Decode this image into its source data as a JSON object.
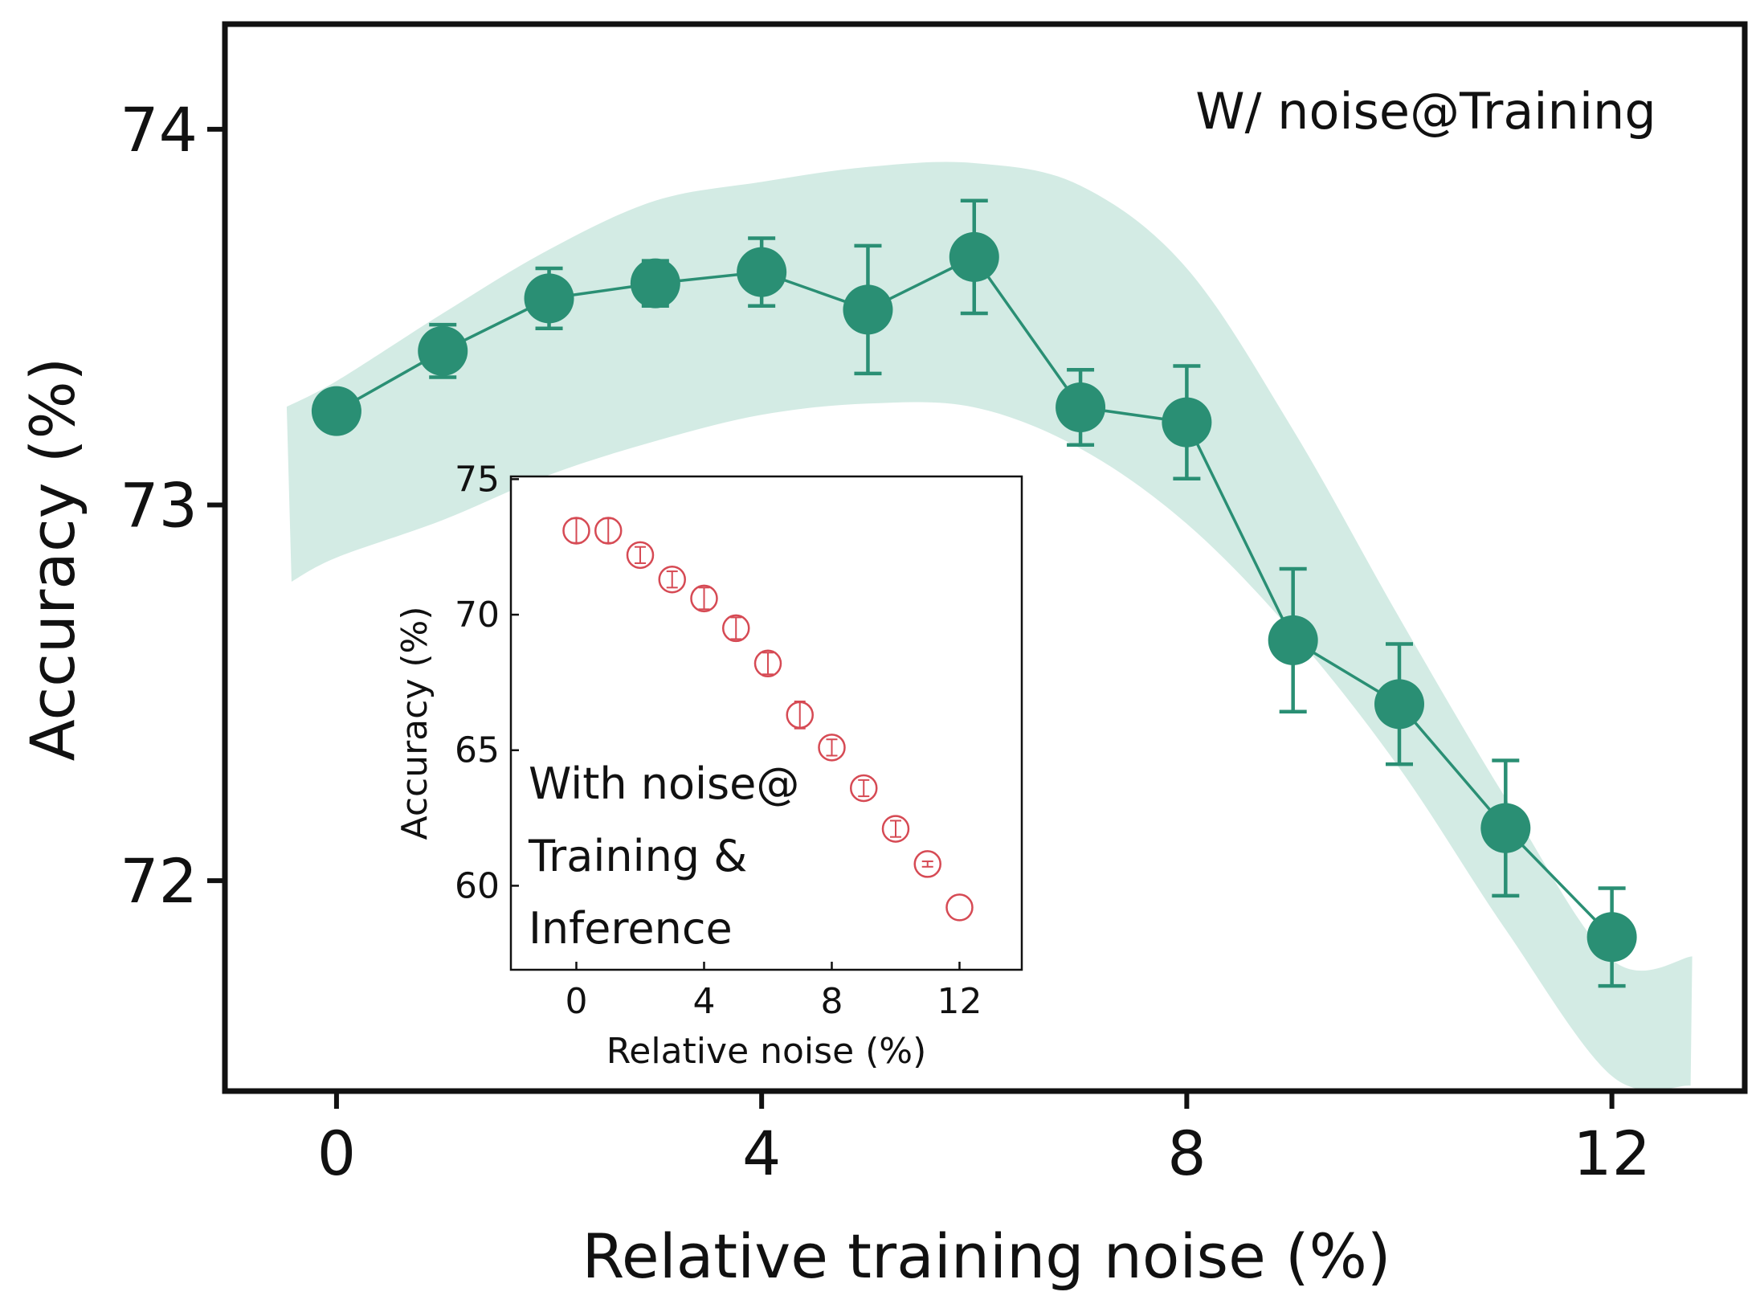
{
  "chart_data": [
    {
      "type": "scatter",
      "xlabel": "Relative training noise (%)",
      "ylabel": "Accuracy (%)",
      "xlim": [
        -1.05,
        13.25
      ],
      "ylim": [
        71.44,
        74.28
      ],
      "xticks": [
        "0",
        "4",
        "8",
        "12"
      ],
      "yticks": [
        "72",
        "73",
        "74"
      ],
      "annotation": "W/ noise@Training",
      "grid": false,
      "series": [
        {
          "x": [
            0,
            1,
            2,
            3,
            4,
            5,
            6,
            7,
            8,
            9,
            10,
            11,
            12
          ],
          "values": [
            73.25,
            73.41,
            73.55,
            73.59,
            73.62,
            73.52,
            73.66,
            73.26,
            73.22,
            72.64,
            72.47,
            72.14,
            71.85
          ],
          "errors": [
            0.0,
            0.07,
            0.08,
            0.06,
            0.09,
            0.17,
            0.15,
            0.1,
            0.15,
            0.19,
            0.16,
            0.18,
            0.13
          ],
          "color": "#2a8f74",
          "band_lower": [
            72.86,
            72.96,
            73.08,
            73.17,
            73.24,
            73.27,
            73.26,
            73.15,
            72.95,
            72.66,
            72.3,
            71.87,
            71.48
          ],
          "band_upper": [
            73.33,
            73.51,
            73.68,
            73.81,
            73.86,
            73.9,
            73.91,
            73.85,
            73.63,
            73.2,
            72.7,
            72.22,
            71.79
          ],
          "band_color": "#d3ebe4"
        }
      ]
    },
    {
      "type": "scatter",
      "xlabel": "Relative noise (%)",
      "ylabel": "Accuracy (%)",
      "xlim": [
        -2.05,
        13.95
      ],
      "ylim": [
        56.9,
        75.1
      ],
      "xticks": [
        "0",
        "4",
        "8",
        "12"
      ],
      "yticks": [
        "60",
        "65",
        "70",
        "75"
      ],
      "annotation_lines": [
        "With noise@",
        "Training &",
        "Inference"
      ],
      "series": [
        {
          "x": [
            0,
            1,
            2,
            3,
            4,
            5,
            6,
            7,
            8,
            9,
            10,
            11,
            12
          ],
          "values": [
            73.1,
            73.1,
            72.2,
            71.3,
            70.6,
            69.5,
            68.2,
            66.3,
            65.1,
            63.6,
            62.1,
            60.8,
            59.2
          ],
          "errors": [
            0.45,
            0.45,
            0.3,
            0.3,
            0.4,
            0.4,
            0.4,
            0.5,
            0.3,
            0.3,
            0.3,
            0.1,
            0.0
          ],
          "color": "#d64a54"
        }
      ]
    }
  ]
}
